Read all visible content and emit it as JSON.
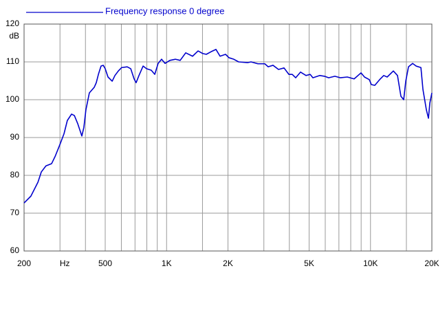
{
  "chart_data": {
    "type": "line",
    "xscale": "log",
    "ylabel": "dB",
    "legend": "top-left",
    "grid": true,
    "xlim": [
      200,
      20000
    ],
    "ylim": [
      60,
      120
    ],
    "yticks": [
      60,
      70,
      80,
      90,
      100,
      110,
      120
    ],
    "xticks": [
      200,
      {
        "value": 300,
        "label": "Hz"
      },
      500,
      {
        "value": 1000,
        "label": "1K"
      },
      {
        "value": 2000,
        "label": "2K"
      },
      {
        "value": 5000,
        "label": "5K"
      },
      {
        "value": 10000,
        "label": "10K"
      },
      {
        "value": 20000,
        "label": "20K"
      }
    ],
    "xminor": [
      400,
      600,
      700,
      800,
      900,
      1500,
      3000,
      4000,
      6000,
      7000,
      8000,
      9000,
      15000
    ],
    "x": [
      200,
      216,
      234,
      243,
      256,
      273,
      284,
      300,
      314,
      326,
      342,
      353,
      367,
      384,
      393,
      402,
      418,
      442,
      452,
      463,
      477,
      489,
      500,
      516,
      541,
      558,
      580,
      602,
      641,
      667,
      693,
      709,
      732,
      767,
      797,
      841,
      875,
      909,
      945,
      983,
      1038,
      1104,
      1166,
      1241,
      1341,
      1427,
      1506,
      1566,
      1654,
      1746,
      1829,
      1946,
      2023,
      2136,
      2256,
      2496,
      2594,
      2804,
      3031,
      3150,
      3326,
      3539,
      3767,
      3977,
      4133,
      4296,
      4537,
      4829,
      5059,
      5219,
      5640,
      5954,
      6237,
      6690,
      7118,
      7694,
      8314,
      8987,
      9343,
      9867,
      10099,
      10497,
      11085,
      11612,
      12075,
      12946,
      13564,
      14100,
      14550,
      14893,
      15363,
      16093,
      16730,
      17674,
      18084,
      18799,
      19243,
      19546,
      20000
    ],
    "series": [
      {
        "name": "Frequency response 0 degree",
        "color": "#0000cc",
        "values": [
          72.7,
          74.5,
          78.2,
          80.9,
          82.5,
          83.1,
          85,
          88.2,
          91,
          94.5,
          96.2,
          95.8,
          93.6,
          90.4,
          92.7,
          97.3,
          101.8,
          103.3,
          104.5,
          106.7,
          108.9,
          109.1,
          108.2,
          106,
          104.9,
          106.4,
          107.6,
          108.5,
          108.7,
          108.2,
          105.5,
          104.5,
          106.4,
          108.9,
          108.2,
          107.8,
          106.7,
          109.6,
          110.7,
          109.6,
          110.4,
          110.7,
          110.4,
          112.4,
          111.5,
          112.9,
          112.2,
          112,
          112.7,
          113.3,
          111.5,
          112,
          111.1,
          110.7,
          110,
          109.8,
          110,
          109.5,
          109.5,
          108.7,
          109.1,
          108,
          108.4,
          106.7,
          106.7,
          105.8,
          107.3,
          106.4,
          106.7,
          105.8,
          106.4,
          106.2,
          105.8,
          106.2,
          105.8,
          106,
          105.5,
          107.1,
          106,
          105.3,
          104,
          103.8,
          105.3,
          106.4,
          106,
          107.6,
          106.4,
          100.9,
          100,
          104.9,
          108.7,
          109.6,
          108.9,
          108.5,
          102.7,
          97.3,
          95.1,
          99.1,
          101.8
        ]
      }
    ]
  }
}
